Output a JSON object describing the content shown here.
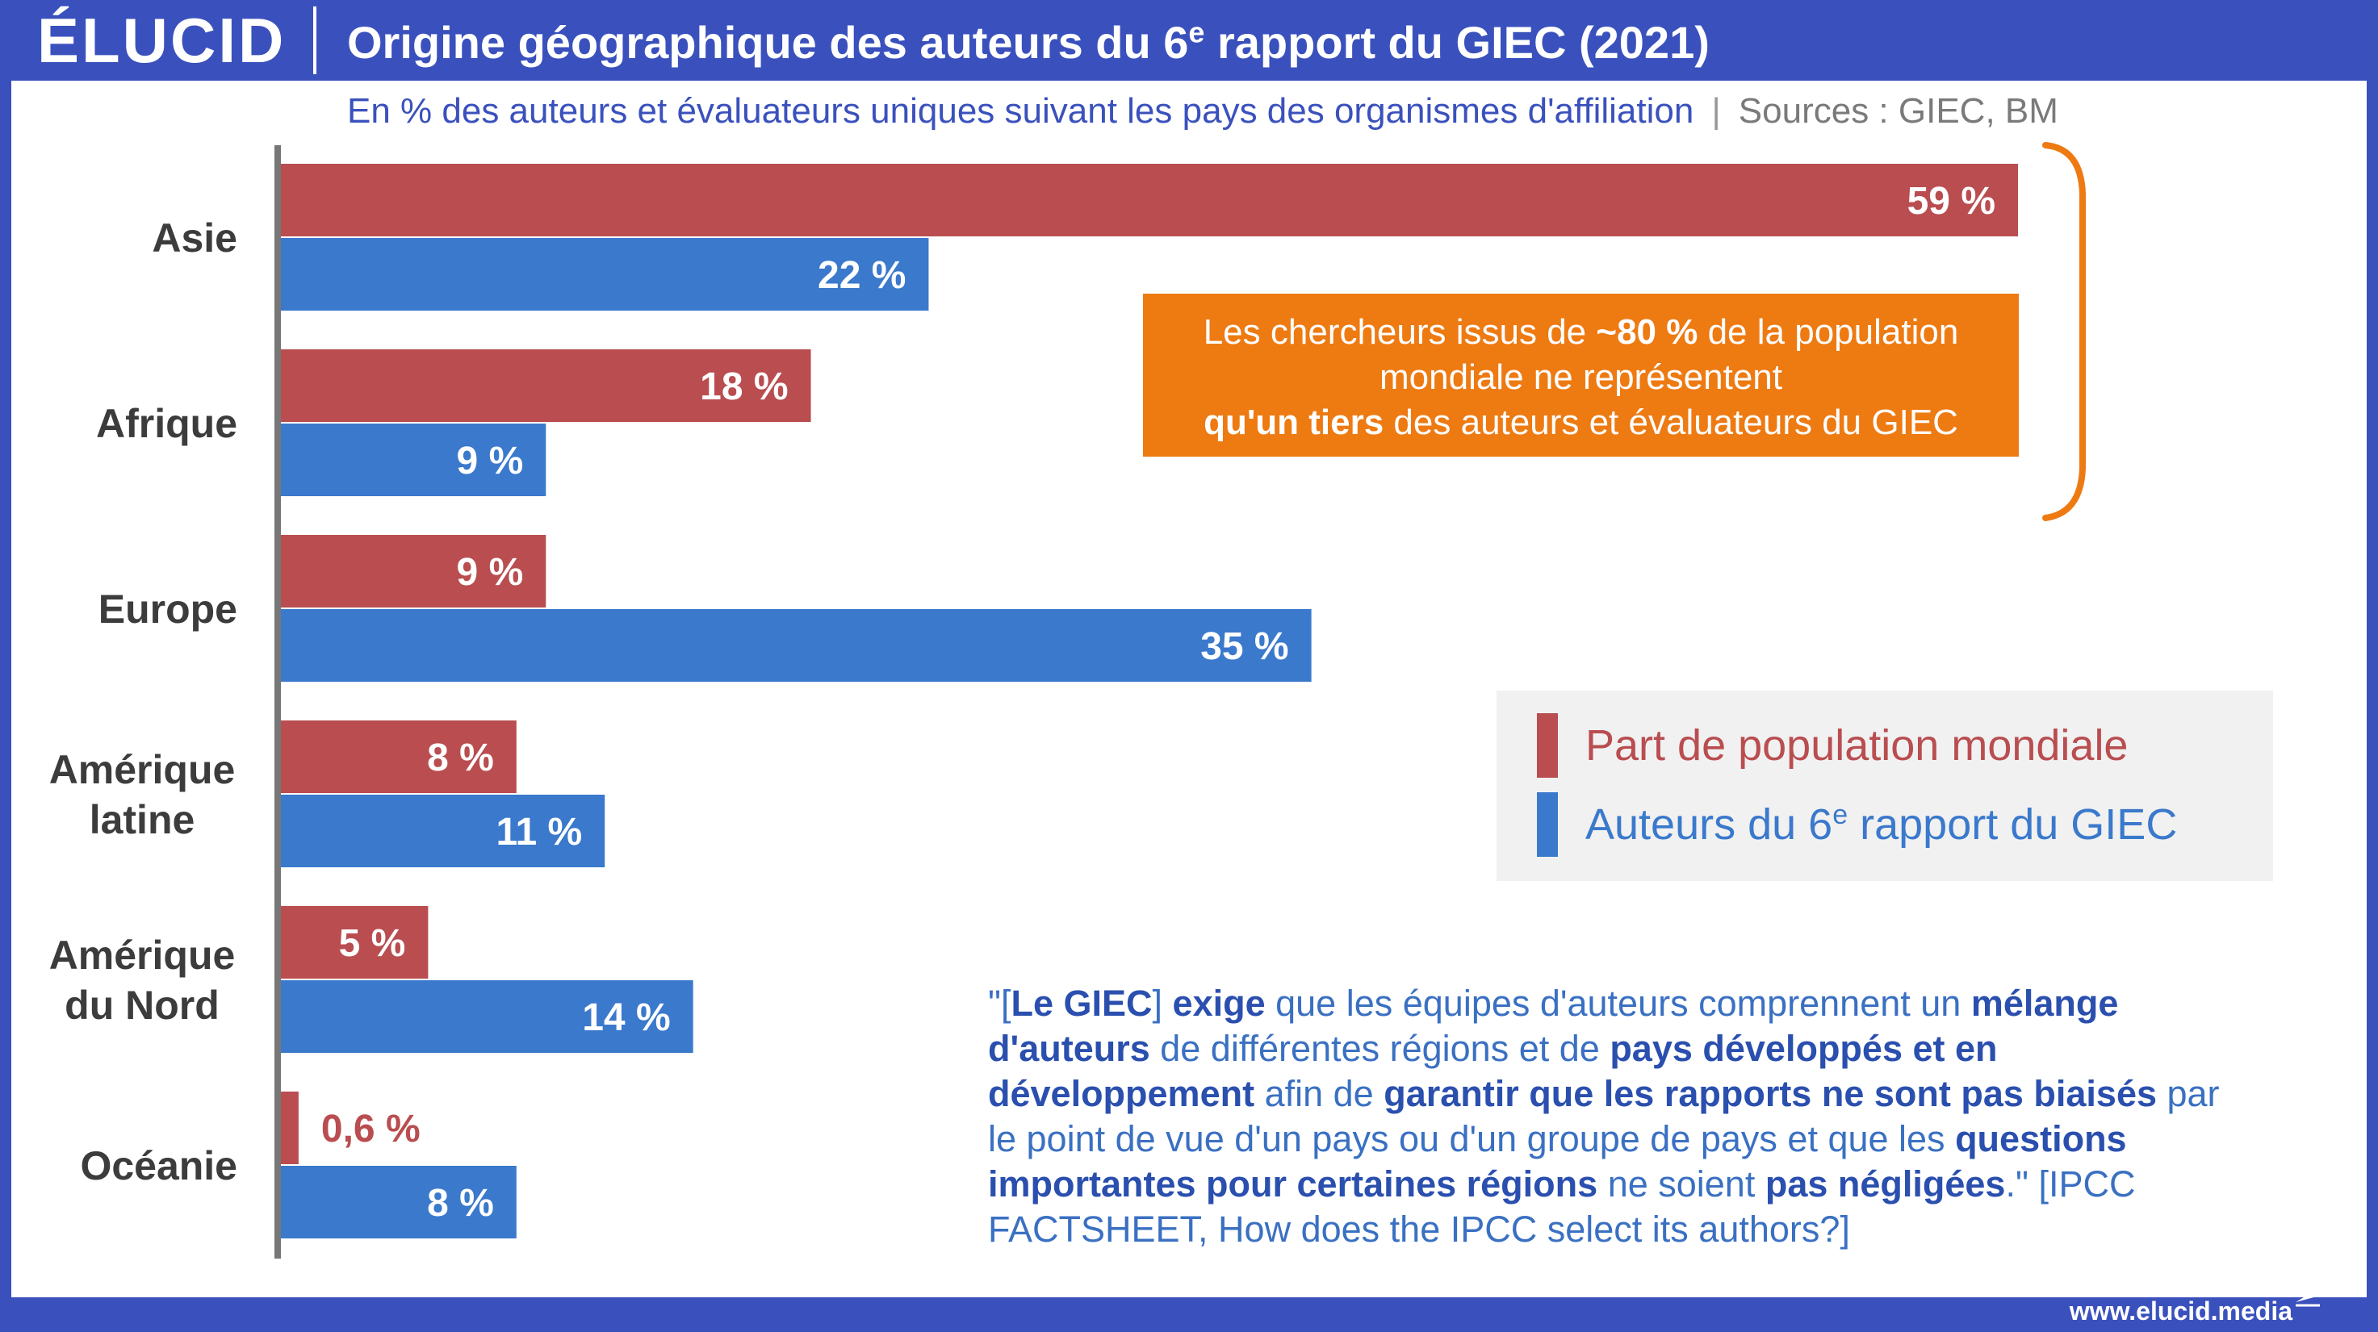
{
  "header": {
    "logo": "ÉLUCID",
    "title": "Origine géographique des auteurs du 6",
    "title_sup": "e",
    "title_end": " rapport du GIEC (2021)"
  },
  "subtitle": {
    "main": "En % des auteurs et évaluateurs uniques suivant les pays des organismes d'affiliation",
    "separator": "|",
    "sources": "Sources : GIEC, BM"
  },
  "chart_data": {
    "type": "bar",
    "orientation": "horizontal",
    "categories": [
      "Asie",
      "Afrique",
      "Europe",
      "Amérique latine",
      "Amérique du Nord",
      "Océanie"
    ],
    "series": [
      {
        "name": "Part de population mondiale",
        "color": "#b94d50",
        "values": [
          59,
          18,
          9,
          8,
          5,
          0.6
        ],
        "labels": [
          "59 %",
          "18 %",
          "9 %",
          "8 %",
          "5 %",
          "0,6 %"
        ]
      },
      {
        "name": "Auteurs du 6e rapport du GIEC",
        "color": "#3a79cc",
        "values": [
          22,
          9,
          35,
          11,
          14,
          8
        ],
        "labels": [
          "22 %",
          "9 %",
          "35 %",
          "11 %",
          "14 %",
          "8 %"
        ]
      }
    ],
    "xlim": [
      0,
      59
    ],
    "grid": false,
    "legend_position": "right"
  },
  "callout": {
    "line1_a": "Les chercheurs issus de ",
    "line1_b": "~80 %",
    "line1_c": " de la population",
    "line2": "mondiale ne représentent",
    "line3_a": "qu'un tiers",
    "line3_b": " des auteurs et évaluateurs du GIEC",
    "color": "#ee7a12"
  },
  "legend": {
    "pop_label": "Part de population mondiale",
    "authors_label_a": "Auteurs du 6",
    "authors_label_sup": "e",
    "authors_label_b": " rapport du GIEC"
  },
  "quote": {
    "p1": "\"[",
    "b1": "Le GIEC",
    "p2": "] ",
    "b2": "exige",
    "p3": " que les équipes d'auteurs comprennent un ",
    "b3": "mélange d'auteurs",
    "p4": " de différentes régions et de ",
    "b4": "pays développés et en développement",
    "p5": " afin de ",
    "b5": "garantir que les rapports ne sont pas biaisés",
    "p6": " par le point de vue d'un pays ou d'un groupe de pays et que les ",
    "b6": "questions importantes pour certaines régions",
    "p7": " ne soient ",
    "b7": "pas négligées",
    "p8": ".\" [IPCC FACTSHEET, How does the IPCC select its authors?]"
  },
  "footer": {
    "url": "www.elucid.media"
  }
}
